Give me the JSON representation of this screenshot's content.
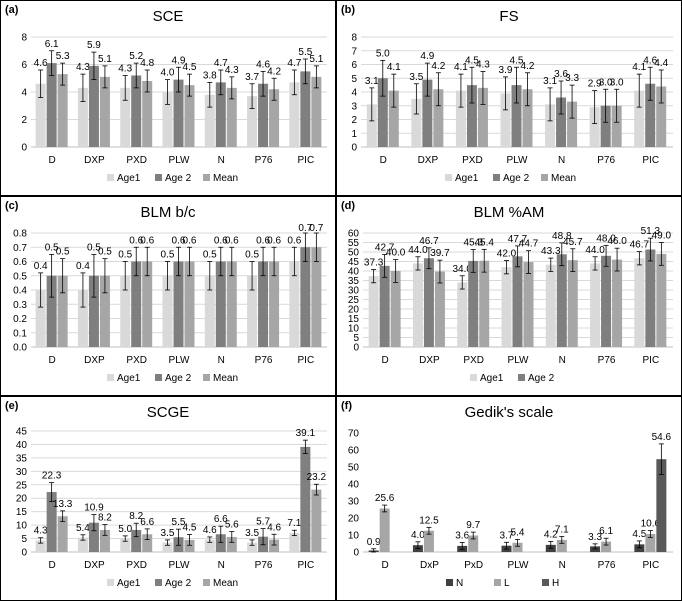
{
  "chart_data": [
    {
      "panel": "(a)",
      "type": "bar",
      "title": "SCE",
      "categories": [
        "D",
        "DXP",
        "PXD",
        "PLW",
        "N",
        "P76",
        "PIC"
      ],
      "ylim": [
        0,
        8
      ],
      "yticks": [
        0,
        2,
        4,
        6,
        8
      ],
      "grid": true,
      "legend": "bottom",
      "series": [
        {
          "name": "Age1",
          "color": "#d9d9d9",
          "values": [
            4.6,
            4.3,
            4.3,
            4.0,
            3.8,
            3.7,
            4.7
          ],
          "errors": [
            1.0,
            1.0,
            0.9,
            0.9,
            0.9,
            0.9,
            0.9
          ]
        },
        {
          "name": "Age 2",
          "color": "#7f7f7f",
          "values": [
            6.1,
            5.9,
            5.2,
            4.9,
            4.7,
            4.6,
            5.5
          ],
          "errors": [
            0.9,
            1.0,
            0.9,
            0.9,
            0.9,
            0.9,
            0.9
          ]
        },
        {
          "name": "Mean",
          "color": "#a6a6a6",
          "values": [
            5.3,
            5.1,
            4.8,
            4.5,
            4.3,
            4.2,
            5.1
          ],
          "errors": [
            0.8,
            0.8,
            0.8,
            0.8,
            0.8,
            0.8,
            0.8
          ]
        }
      ]
    },
    {
      "panel": "(b)",
      "type": "bar",
      "title": "FS",
      "categories": [
        "D",
        "DXP",
        "PXD",
        "PLW",
        "N",
        "P76",
        "PIC"
      ],
      "ylim": [
        0,
        8
      ],
      "yticks": [
        0,
        1,
        2,
        3,
        4,
        5,
        6,
        7,
        8
      ],
      "grid": true,
      "legend": "bottom",
      "series": [
        {
          "name": "Age1",
          "color": "#d9d9d9",
          "values": [
            3.1,
            3.5,
            4.1,
            3.9,
            3.1,
            2.9,
            4.1
          ],
          "errors": [
            1.2,
            1.1,
            1.2,
            1.2,
            1.2,
            1.2,
            1.2
          ]
        },
        {
          "name": "Age 2",
          "color": "#7f7f7f",
          "values": [
            5.0,
            4.9,
            4.5,
            4.5,
            3.6,
            3.0,
            4.6
          ],
          "errors": [
            1.3,
            1.2,
            1.3,
            1.3,
            1.2,
            1.2,
            1.2
          ]
        },
        {
          "name": "Mean",
          "color": "#a6a6a6",
          "values": [
            4.1,
            4.2,
            4.3,
            4.2,
            3.3,
            3.0,
            4.4
          ],
          "errors": [
            1.2,
            1.2,
            1.2,
            1.2,
            1.2,
            1.2,
            1.2
          ]
        }
      ]
    },
    {
      "panel": "(c)",
      "type": "bar",
      "title": "BLM b/c",
      "categories": [
        "D",
        "DXP",
        "PXD",
        "PLW",
        "N",
        "P76",
        "PIC"
      ],
      "ylim": [
        0,
        0.8
      ],
      "yticks": [
        0,
        0.1,
        0.2,
        0.3,
        0.4,
        0.5,
        0.6,
        0.7,
        0.8
      ],
      "grid": true,
      "legend": "bottom",
      "series": [
        {
          "name": "Age1",
          "color": "#d9d9d9",
          "values": [
            0.4,
            0.4,
            0.5,
            0.5,
            0.5,
            0.5,
            0.6
          ],
          "errors": [
            0.12,
            0.12,
            0.1,
            0.1,
            0.1,
            0.1,
            0.1
          ]
        },
        {
          "name": "Age 2",
          "color": "#7f7f7f",
          "values": [
            0.5,
            0.5,
            0.6,
            0.6,
            0.6,
            0.6,
            0.7
          ],
          "errors": [
            0.15,
            0.15,
            0.1,
            0.1,
            0.1,
            0.1,
            0.1
          ]
        },
        {
          "name": "Mean",
          "color": "#a6a6a6",
          "values": [
            0.5,
            0.5,
            0.6,
            0.6,
            0.6,
            0.6,
            0.7
          ],
          "errors": [
            0.12,
            0.12,
            0.1,
            0.1,
            0.1,
            0.1,
            0.1
          ]
        }
      ]
    },
    {
      "panel": "(d)",
      "type": "bar",
      "title": "BLM %AM",
      "categories": [
        "D",
        "DXP",
        "PXD",
        "PLW",
        "N",
        "P76",
        "PIC"
      ],
      "ylim": [
        0,
        60
      ],
      "yticks": [
        0,
        5,
        10,
        15,
        20,
        25,
        30,
        35,
        40,
        45,
        50,
        55,
        60
      ],
      "grid": true,
      "legend": "bottom",
      "series": [
        {
          "name": "Age1",
          "color": "#d9d9d9",
          "values": [
            37.3,
            44.0,
            34.0,
            42.0,
            43.3,
            44.0,
            46.7
          ],
          "errors": [
            3.5,
            3.5,
            3.5,
            3.5,
            3.5,
            3.5,
            3.5
          ]
        },
        {
          "name": "Age 2",
          "color": "#7f7f7f",
          "values": [
            42.7,
            46.7,
            45.3,
            47.7,
            48.8,
            48.0,
            51.3
          ],
          "errors": [
            6.0,
            5.5,
            6.0,
            5.5,
            6.0,
            5.5,
            6.0
          ]
        },
        {
          "name": "",
          "color": "#a6a6a6",
          "values": [
            40.0,
            39.7,
            45.4,
            44.7,
            45.7,
            46.0,
            49.0
          ],
          "errors": [
            6.0,
            6.0,
            6.0,
            6.0,
            6.0,
            6.0,
            6.0
          ]
        }
      ]
    },
    {
      "panel": "(e)",
      "type": "bar",
      "title": "SCGE",
      "categories": [
        "D",
        "DXP",
        "PXD",
        "PLW",
        "N",
        "P76",
        "PIC"
      ],
      "ylim": [
        0,
        45
      ],
      "yticks": [
        0,
        5,
        10,
        15,
        20,
        25,
        30,
        35,
        40,
        45
      ],
      "grid": true,
      "legend": "bottom",
      "series": [
        {
          "name": "Age1",
          "color": "#d9d9d9",
          "values": [
            4.3,
            5.4,
            5.0,
            3.5,
            4.6,
            3.5,
            7.1
          ],
          "errors": [
            1.0,
            1.0,
            1.0,
            1.0,
            1.0,
            1.0,
            1.0
          ]
        },
        {
          "name": "Age 2",
          "color": "#7f7f7f",
          "values": [
            22.3,
            10.9,
            8.2,
            5.5,
            6.6,
            5.7,
            39.1
          ],
          "errors": [
            3.5,
            3.0,
            2.5,
            3.0,
            3.0,
            3.0,
            2.5
          ]
        },
        {
          "name": "Mean",
          "color": "#a6a6a6",
          "values": [
            13.3,
            8.2,
            6.6,
            4.5,
            5.6,
            4.6,
            23.2
          ],
          "errors": [
            2.0,
            2.0,
            2.0,
            2.0,
            2.0,
            2.0,
            2.0
          ]
        }
      ]
    },
    {
      "panel": "(f)",
      "type": "bar",
      "title": "Gedik's scale",
      "categories": [
        "D",
        "DxP",
        "PxD",
        "PLW",
        "N",
        "P76",
        "PIC"
      ],
      "ylim": [
        0,
        70
      ],
      "yticks": [
        0,
        10,
        20,
        30,
        40,
        50,
        60,
        70
      ],
      "grid": false,
      "legend": "bottom",
      "series": [
        {
          "name": "N",
          "color": "#404040",
          "values": [
            0.9,
            4.0,
            3.6,
            3.7,
            4.2,
            3.3,
            4.5
          ],
          "errors": [
            1.0,
            2.0,
            2.0,
            2.0,
            2.0,
            1.5,
            2.0
          ]
        },
        {
          "name": "L",
          "color": "#a6a6a6",
          "values": [
            25.6,
            12.5,
            9.7,
            5.4,
            7.1,
            6.1,
            10.6
          ],
          "errors": [
            2.0,
            2.0,
            2.0,
            2.0,
            2.0,
            2.0,
            2.0
          ]
        },
        {
          "name": "H",
          "color": "#595959",
          "values": [
            null,
            null,
            null,
            null,
            null,
            null,
            54.6
          ],
          "errors": [
            0,
            0,
            0,
            0,
            0,
            0,
            9.0
          ]
        }
      ]
    }
  ]
}
